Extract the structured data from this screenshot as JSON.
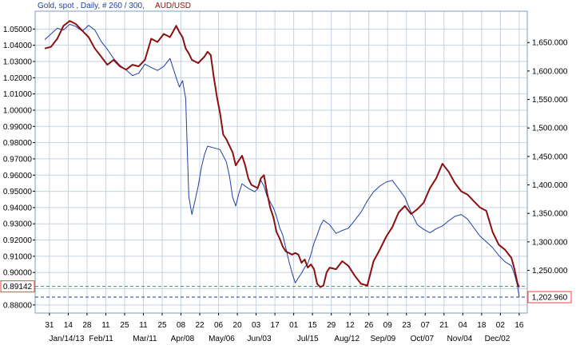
{
  "chart_data": {
    "type": "line",
    "title": {
      "series1_label": "Gold, spot , Daily, # 260 / 300,",
      "series2_label": "AUD/USD"
    },
    "colors": {
      "gold": "#1f3fa8",
      "aud": "#8b1010",
      "grid": "#c6d2e0",
      "marker_left": "#ff4040",
      "marker_right": "#ff4040",
      "dash_gold": "#2a3a99",
      "dash_aud": "#3a8a7a"
    },
    "left_axis": {
      "ylim": [
        0.875,
        1.061
      ],
      "ticks": [
        0.88,
        0.89,
        0.9,
        0.91,
        0.92,
        0.93,
        0.94,
        0.95,
        0.96,
        0.97,
        0.98,
        0.99,
        1.0,
        1.01,
        1.02,
        1.03,
        1.04,
        1.05
      ],
      "tick_labels": [
        "0.88000",
        "0.89000",
        "0.90000",
        "0.91000",
        "0.92000",
        "0.93000",
        "0.94000",
        "0.95000",
        "0.96000",
        "0.97000",
        "0.98000",
        "0.99000",
        "1.00000",
        "1.01000",
        "1.02000",
        "1.03000",
        "1.04000",
        "1.05000"
      ]
    },
    "right_axis": {
      "ylim": [
        1175,
        1705
      ],
      "ticks": [
        1250,
        1300,
        1350,
        1400,
        1450,
        1500,
        1550,
        1600,
        1650
      ],
      "tick_labels": [
        "1,250.000",
        "1,300.000",
        "1,350.000",
        "1,400.000",
        "1,450.000",
        "1,500.000",
        "1,550.000",
        "1,600.000",
        "1,650.000"
      ]
    },
    "x_axis": {
      "range": [
        0,
        300
      ],
      "day_ticks": [
        {
          "i": 3,
          "label": "31"
        },
        {
          "i": 15,
          "label": "14"
        },
        {
          "i": 27,
          "label": "28"
        },
        {
          "i": 39,
          "label": "11"
        },
        {
          "i": 51,
          "label": "25"
        },
        {
          "i": 63,
          "label": "11"
        },
        {
          "i": 75,
          "label": "25"
        },
        {
          "i": 87,
          "label": "08"
        },
        {
          "i": 99,
          "label": "22"
        },
        {
          "i": 111,
          "label": "06"
        },
        {
          "i": 123,
          "label": "20"
        },
        {
          "i": 135,
          "label": "03"
        },
        {
          "i": 147,
          "label": "17"
        },
        {
          "i": 159,
          "label": "01"
        },
        {
          "i": 171,
          "label": "15"
        },
        {
          "i": 183,
          "label": "29"
        },
        {
          "i": 195,
          "label": "12"
        },
        {
          "i": 207,
          "label": "26"
        },
        {
          "i": 219,
          "label": "09"
        },
        {
          "i": 231,
          "label": "23"
        },
        {
          "i": 243,
          "label": "07"
        },
        {
          "i": 255,
          "label": "21"
        },
        {
          "i": 267,
          "label": "04"
        },
        {
          "i": 279,
          "label": "18"
        },
        {
          "i": 291,
          "label": "02"
        },
        {
          "i": 303,
          "label": "16"
        }
      ],
      "month_labels": [
        {
          "i": 14,
          "label": "Jan/14/13"
        },
        {
          "i": 36,
          "label": "Feb/11"
        },
        {
          "i": 64,
          "label": "Mar/11"
        },
        {
          "i": 88,
          "label": "Apr/08"
        },
        {
          "i": 113,
          "label": "May/06"
        },
        {
          "i": 137,
          "label": "Jun/03"
        },
        {
          "i": 168,
          "label": "Jul/15"
        },
        {
          "i": 193,
          "label": "Aug/12"
        },
        {
          "i": 216,
          "label": "Sep/09"
        },
        {
          "i": 241,
          "label": "Oct/07"
        },
        {
          "i": 265,
          "label": "Nov/04"
        },
        {
          "i": 289,
          "label": "Dec/02"
        }
      ]
    },
    "last_values": {
      "aud": 0.89142,
      "aud_label": "0.89142",
      "gold": 1202.96,
      "gold_label": "1,202.960"
    },
    "series": [
      {
        "name": "Gold, spot",
        "axis": "right",
        "points": [
          [
            0,
            1655
          ],
          [
            4,
            1665
          ],
          [
            8,
            1675
          ],
          [
            12,
            1672
          ],
          [
            16,
            1682
          ],
          [
            20,
            1678
          ],
          [
            24,
            1670
          ],
          [
            28,
            1680
          ],
          [
            32,
            1672
          ],
          [
            36,
            1652
          ],
          [
            40,
            1638
          ],
          [
            44,
            1622
          ],
          [
            48,
            1610
          ],
          [
            52,
            1602
          ],
          [
            56,
            1592
          ],
          [
            60,
            1596
          ],
          [
            64,
            1612
          ],
          [
            68,
            1606
          ],
          [
            72,
            1601
          ],
          [
            76,
            1608
          ],
          [
            80,
            1622
          ],
          [
            84,
            1588
          ],
          [
            86,
            1572
          ],
          [
            88,
            1583
          ],
          [
            90,
            1552
          ],
          [
            92,
            1380
          ],
          [
            94,
            1348
          ],
          [
            96,
            1373
          ],
          [
            98,
            1398
          ],
          [
            100,
            1430
          ],
          [
            102,
            1453
          ],
          [
            104,
            1468
          ],
          [
            108,
            1465
          ],
          [
            112,
            1462
          ],
          [
            116,
            1440
          ],
          [
            118,
            1415
          ],
          [
            120,
            1378
          ],
          [
            122,
            1363
          ],
          [
            124,
            1385
          ],
          [
            126,
            1402
          ],
          [
            128,
            1398
          ],
          [
            130,
            1394
          ],
          [
            134,
            1388
          ],
          [
            136,
            1393
          ],
          [
            138,
            1408
          ],
          [
            140,
            1398
          ],
          [
            142,
            1380
          ],
          [
            146,
            1360
          ],
          [
            148,
            1345
          ],
          [
            150,
            1325
          ],
          [
            152,
            1312
          ],
          [
            154,
            1289
          ],
          [
            156,
            1265
          ],
          [
            158,
            1245
          ],
          [
            160,
            1228
          ],
          [
            162,
            1237
          ],
          [
            164,
            1245
          ],
          [
            166,
            1255
          ],
          [
            168,
            1262
          ],
          [
            170,
            1278
          ],
          [
            172,
            1298
          ],
          [
            174,
            1312
          ],
          [
            176,
            1328
          ],
          [
            178,
            1338
          ],
          [
            182,
            1330
          ],
          [
            186,
            1315
          ],
          [
            190,
            1320
          ],
          [
            194,
            1324
          ],
          [
            198,
            1338
          ],
          [
            202,
            1352
          ],
          [
            206,
            1372
          ],
          [
            210,
            1388
          ],
          [
            214,
            1398
          ],
          [
            218,
            1405
          ],
          [
            222,
            1408
          ],
          [
            226,
            1393
          ],
          [
            230,
            1378
          ],
          [
            234,
            1352
          ],
          [
            238,
            1330
          ],
          [
            242,
            1322
          ],
          [
            246,
            1316
          ],
          [
            250,
            1323
          ],
          [
            254,
            1328
          ],
          [
            258,
            1337
          ],
          [
            262,
            1345
          ],
          [
            266,
            1348
          ],
          [
            270,
            1340
          ],
          [
            274,
            1325
          ],
          [
            278,
            1310
          ],
          [
            282,
            1300
          ],
          [
            286,
            1290
          ],
          [
            290,
            1276
          ],
          [
            294,
            1265
          ],
          [
            298,
            1258
          ],
          [
            300,
            1243
          ],
          [
            302,
            1222
          ],
          [
            303,
            1203
          ]
        ]
      },
      {
        "name": "AUD/USD",
        "axis": "left",
        "points": [
          [
            0,
            1.038
          ],
          [
            4,
            1.039
          ],
          [
            8,
            1.044
          ],
          [
            12,
            1.052
          ],
          [
            16,
            1.055
          ],
          [
            20,
            1.053
          ],
          [
            24,
            1.049
          ],
          [
            28,
            1.045
          ],
          [
            32,
            1.038
          ],
          [
            36,
            1.033
          ],
          [
            40,
            1.028
          ],
          [
            44,
            1.031
          ],
          [
            48,
            1.027
          ],
          [
            52,
            1.025
          ],
          [
            56,
            1.028
          ],
          [
            60,
            1.027
          ],
          [
            64,
            1.031
          ],
          [
            68,
            1.044
          ],
          [
            72,
            1.042
          ],
          [
            76,
            1.047
          ],
          [
            80,
            1.045
          ],
          [
            84,
            1.052
          ],
          [
            86,
            1.048
          ],
          [
            88,
            1.045
          ],
          [
            90,
            1.038
          ],
          [
            92,
            1.035
          ],
          [
            94,
            1.031
          ],
          [
            98,
            1.029
          ],
          [
            102,
            1.033
          ],
          [
            104,
            1.036
          ],
          [
            106,
            1.034
          ],
          [
            108,
            1.02
          ],
          [
            110,
            1.008
          ],
          [
            112,
            0.998
          ],
          [
            114,
            0.985
          ],
          [
            116,
            0.982
          ],
          [
            118,
            0.978
          ],
          [
            120,
            0.974
          ],
          [
            122,
            0.966
          ],
          [
            124,
            0.969
          ],
          [
            126,
            0.972
          ],
          [
            128,
            0.966
          ],
          [
            130,
            0.958
          ],
          [
            132,
            0.954
          ],
          [
            134,
            0.953
          ],
          [
            136,
            0.952
          ],
          [
            138,
            0.958
          ],
          [
            140,
            0.96
          ],
          [
            142,
            0.949
          ],
          [
            144,
            0.94
          ],
          [
            146,
            0.934
          ],
          [
            148,
            0.925
          ],
          [
            150,
            0.921
          ],
          [
            152,
            0.916
          ],
          [
            154,
            0.913
          ],
          [
            156,
            0.912
          ],
          [
            158,
            0.911
          ],
          [
            160,
            0.912
          ],
          [
            162,
            0.911
          ],
          [
            164,
            0.906
          ],
          [
            166,
            0.908
          ],
          [
            168,
            0.903
          ],
          [
            170,
            0.905
          ],
          [
            172,
            0.902
          ],
          [
            174,
            0.893
          ],
          [
            176,
            0.891
          ],
          [
            178,
            0.892
          ],
          [
            180,
            0.9
          ],
          [
            182,
            0.903
          ],
          [
            186,
            0.902
          ],
          [
            190,
            0.907
          ],
          [
            194,
            0.904
          ],
          [
            198,
            0.898
          ],
          [
            202,
            0.893
          ],
          [
            206,
            0.892
          ],
          [
            210,
            0.907
          ],
          [
            214,
            0.914
          ],
          [
            218,
            0.922
          ],
          [
            222,
            0.928
          ],
          [
            226,
            0.937
          ],
          [
            230,
            0.941
          ],
          [
            234,
            0.936
          ],
          [
            238,
            0.939
          ],
          [
            242,
            0.943
          ],
          [
            246,
            0.952
          ],
          [
            250,
            0.958
          ],
          [
            254,
            0.967
          ],
          [
            258,
            0.962
          ],
          [
            262,
            0.955
          ],
          [
            266,
            0.95
          ],
          [
            270,
            0.948
          ],
          [
            274,
            0.944
          ],
          [
            278,
            0.94
          ],
          [
            282,
            0.938
          ],
          [
            286,
            0.925
          ],
          [
            290,
            0.917
          ],
          [
            294,
            0.914
          ],
          [
            298,
            0.909
          ],
          [
            300,
            0.902
          ],
          [
            302,
            0.893
          ],
          [
            303,
            0.891
          ]
        ]
      }
    ]
  }
}
